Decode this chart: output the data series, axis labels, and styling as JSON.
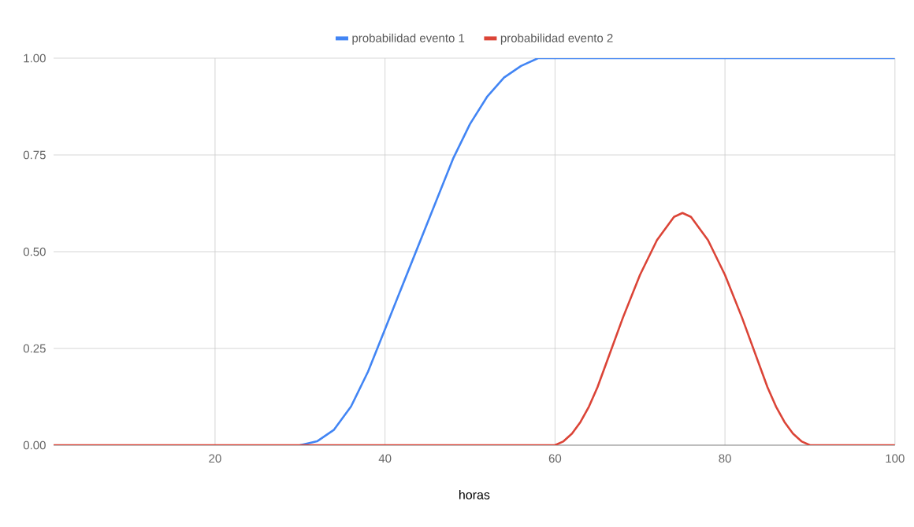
{
  "chart_data": {
    "type": "line",
    "xlabel": "horas",
    "x": [
      1,
      10,
      20,
      30,
      32,
      34,
      36,
      38,
      40,
      42,
      44,
      46,
      48,
      50,
      52,
      54,
      56,
      58,
      60,
      61,
      62,
      63,
      64,
      65,
      66,
      67,
      68,
      70,
      72,
      74,
      75,
      76,
      78,
      80,
      82,
      84,
      85,
      86,
      87,
      88,
      89,
      90,
      95,
      100
    ],
    "series": [
      {
        "name": "probabilidad evento 1",
        "color": "#4285f4",
        "values": [
          null,
          null,
          null,
          0,
          0.01,
          0.04,
          0.1,
          0.19,
          0.3,
          0.41,
          0.52,
          0.63,
          0.74,
          0.83,
          0.9,
          0.95,
          0.98,
          1.0,
          1.0,
          1.0,
          1.0,
          1.0,
          1.0,
          1.0,
          1.0,
          1.0,
          1.0,
          1.0,
          1.0,
          1.0,
          1.0,
          1.0,
          1.0,
          1.0,
          1.0,
          1.0,
          1.0,
          1.0,
          1.0,
          1.0,
          1.0,
          1.0,
          1.0,
          1.0
        ]
      },
      {
        "name": "probabilidad evento 2",
        "color": "#db4437",
        "values": [
          0,
          0,
          0,
          0,
          0,
          0,
          0,
          0,
          0,
          0,
          0,
          0,
          0,
          0,
          0,
          0,
          0,
          0,
          0,
          0.01,
          0.03,
          0.06,
          0.1,
          0.15,
          0.21,
          0.27,
          0.33,
          0.44,
          0.53,
          0.59,
          0.6,
          0.59,
          0.53,
          0.44,
          0.33,
          0.21,
          0.15,
          0.1,
          0.06,
          0.03,
          0.01,
          0,
          0,
          0
        ]
      }
    ],
    "xlim": [
      1,
      100
    ],
    "ylim": [
      0,
      1
    ],
    "xticks": [
      20,
      40,
      60,
      80,
      100
    ],
    "yticks": [
      {
        "value": 0,
        "label": "0.00"
      },
      {
        "value": 0.25,
        "label": "0.25"
      },
      {
        "value": 0.5,
        "label": "0.50"
      },
      {
        "value": 0.75,
        "label": "0.75"
      },
      {
        "value": 1,
        "label": "1.00"
      }
    ],
    "grid": true,
    "legend": "top",
    "marker": "none",
    "line_style": "solid"
  }
}
